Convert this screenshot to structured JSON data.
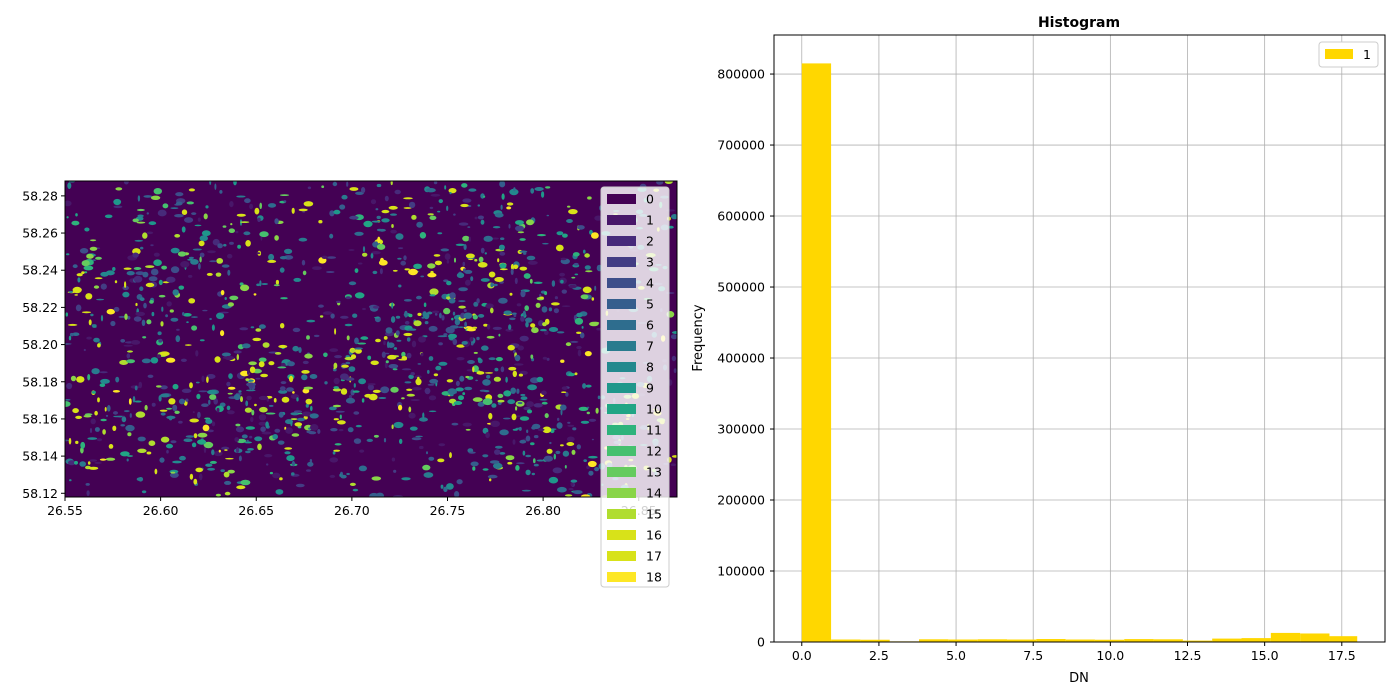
{
  "chart_data": [
    {
      "type": "heatmap",
      "title": "",
      "xlabel": "",
      "ylabel": "",
      "xlim": [
        26.55,
        26.87
      ],
      "ylim": [
        58.118,
        58.288
      ],
      "xticks": [
        "26.55",
        "26.60",
        "26.65",
        "26.70",
        "26.75",
        "26.80",
        "26.85"
      ],
      "yticks": [
        "58.12",
        "58.14",
        "58.16",
        "58.18",
        "58.20",
        "58.22",
        "58.24",
        "58.26",
        "58.28"
      ],
      "background_class": 0,
      "legend": {
        "placement": "upper-right",
        "entries": [
          {
            "label": "0",
            "color": "#440154"
          },
          {
            "label": "1",
            "color": "#481769"
          },
          {
            "label": "2",
            "color": "#472a7a"
          },
          {
            "label": "3",
            "color": "#433d84"
          },
          {
            "label": "4",
            "color": "#3d4e8a"
          },
          {
            "label": "5",
            "color": "#355e8d"
          },
          {
            "label": "6",
            "color": "#2e6d8e"
          },
          {
            "label": "7",
            "color": "#297b8e"
          },
          {
            "label": "8",
            "color": "#23898e"
          },
          {
            "label": "9",
            "color": "#1f978b"
          },
          {
            "label": "10",
            "color": "#21a585"
          },
          {
            "label": "11",
            "color": "#2eb37c"
          },
          {
            "label": "12",
            "color": "#46c06f"
          },
          {
            "label": "13",
            "color": "#65cb5e"
          },
          {
            "label": "14",
            "color": "#89d548"
          },
          {
            "label": "15",
            "color": "#b0dd2f"
          },
          {
            "label": "16",
            "color": "#d8e219"
          },
          {
            "label": "17",
            "color": "#d8e219"
          },
          {
            "label": "18",
            "color": "#fde725"
          }
        ]
      }
    },
    {
      "type": "bar",
      "title": "Histogram",
      "xlabel": "DN",
      "ylabel": "Frequency",
      "xlim": [
        -0.9,
        18.9
      ],
      "ylim": [
        0,
        855000
      ],
      "xticks": [
        0,
        2.5,
        5,
        7.5,
        10,
        12.5,
        15,
        17.5
      ],
      "xtick_labels": [
        "0.0",
        "2.5",
        "5.0",
        "7.5",
        "10.0",
        "12.5",
        "15.0",
        "17.5"
      ],
      "yticks": [
        0,
        100000,
        200000,
        300000,
        400000,
        500000,
        600000,
        700000,
        800000
      ],
      "yticks_labels": [
        "0",
        "100000",
        "200000",
        "300000",
        "400000",
        "500000",
        "600000",
        "700000",
        "800000"
      ],
      "grid": true,
      "bar_color": "#ffd700",
      "bin_edges": [
        0,
        0.95,
        1.9,
        2.85,
        3.8,
        4.75,
        5.7,
        6.65,
        7.6,
        8.55,
        9.5,
        10.45,
        11.4,
        12.35,
        13.3,
        14.25,
        15.2,
        16.15,
        17.1,
        18
      ],
      "values": [
        815000,
        3500,
        3200,
        900,
        3800,
        3500,
        3800,
        3500,
        4200,
        3500,
        3200,
        4100,
        3800,
        2000,
        4800,
        5500,
        12800,
        12000,
        8200
      ],
      "legend": {
        "placement": "upper-right",
        "entries": [
          {
            "label": "1",
            "color": "#ffd700"
          }
        ]
      }
    }
  ]
}
